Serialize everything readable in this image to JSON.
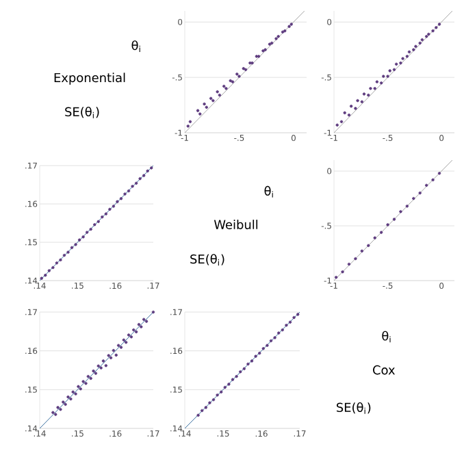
{
  "chart_data": [
    {
      "type": "other",
      "annotations": [
        "θ$_{i}$",
        "Exponential",
        "SE(θ$_{i}$)"
      ]
    },
    {
      "type": "scatter",
      "xlim": [
        -1,
        0.12
      ],
      "ylim": [
        -1,
        0.1
      ],
      "xticks": [
        -1,
        {
          "value": -0.5,
          "label": "-.5"
        },
        0
      ],
      "yticks": [
        -1,
        {
          "value": -0.5,
          "label": "-.5"
        },
        0
      ],
      "grid": "y",
      "series": [
        {
          "color": "#5e3c7f",
          "marker": "circle",
          "x": [
            -0.97,
            -0.95,
            -0.88,
            -0.86,
            -0.82,
            -0.8,
            -0.76,
            -0.74,
            -0.7,
            -0.68,
            -0.64,
            -0.62,
            -0.58,
            -0.56,
            -0.52,
            -0.5,
            -0.46,
            -0.44,
            -0.4,
            -0.38,
            -0.34,
            -0.32,
            -0.28,
            -0.26,
            -0.22,
            -0.2,
            -0.16,
            -0.14,
            -0.1,
            -0.08,
            -0.04,
            -0.02
          ],
          "values": [
            -0.94,
            -0.9,
            -0.8,
            -0.83,
            -0.74,
            -0.77,
            -0.69,
            -0.71,
            -0.63,
            -0.66,
            -0.58,
            -0.6,
            -0.53,
            -0.54,
            -0.47,
            -0.49,
            -0.42,
            -0.43,
            -0.37,
            -0.37,
            -0.31,
            -0.31,
            -0.26,
            -0.25,
            -0.2,
            -0.19,
            -0.15,
            -0.13,
            -0.09,
            -0.08,
            -0.04,
            -0.02
          ]
        },
        {
          "type": "line",
          "marker": "none",
          "color": "#a8a8a8",
          "x": [
            -1,
            0.1
          ],
          "values": [
            -1,
            0.1
          ]
        }
      ]
    },
    {
      "type": "scatter",
      "xlim": [
        -1,
        0.12
      ],
      "ylim": [
        -1,
        0.1
      ],
      "xticks": [
        -1,
        {
          "value": -0.5,
          "label": "-.5"
        },
        0
      ],
      "yticks": [
        -1,
        {
          "value": -0.5,
          "label": "-.5"
        },
        0
      ],
      "grid": "y",
      "series": [
        {
          "color": "#5e3c7f",
          "marker": "circle",
          "x": [
            -0.97,
            -0.93,
            -0.9,
            -0.86,
            -0.84,
            -0.8,
            -0.78,
            -0.74,
            -0.72,
            -0.68,
            -0.66,
            -0.62,
            -0.6,
            -0.56,
            -0.54,
            -0.5,
            -0.48,
            -0.44,
            -0.42,
            -0.38,
            -0.36,
            -0.32,
            -0.3,
            -0.26,
            -0.24,
            -0.2,
            -0.18,
            -0.14,
            -0.12,
            -0.08,
            -0.05,
            -0.02
          ],
          "values": [
            -0.93,
            -0.9,
            -0.82,
            -0.84,
            -0.76,
            -0.78,
            -0.71,
            -0.72,
            -0.65,
            -0.66,
            -0.6,
            -0.6,
            -0.54,
            -0.55,
            -0.49,
            -0.49,
            -0.44,
            -0.43,
            -0.38,
            -0.37,
            -0.33,
            -0.31,
            -0.27,
            -0.25,
            -0.22,
            -0.19,
            -0.16,
            -0.13,
            -0.11,
            -0.08,
            -0.05,
            -0.02
          ]
        },
        {
          "type": "line",
          "marker": "none",
          "color": "#a8a8a8",
          "x": [
            -1,
            0.1
          ],
          "values": [
            -1,
            0.1
          ]
        }
      ]
    },
    {
      "type": "scatter",
      "xlim": [
        0.14,
        0.17
      ],
      "ylim": [
        0.14,
        0.17
      ],
      "xticks": [
        {
          "value": 0.14,
          "label": ".14"
        },
        {
          "value": 0.15,
          "label": ".15"
        },
        {
          "value": 0.16,
          "label": ".16"
        },
        {
          "value": 0.17,
          "label": ".17"
        }
      ],
      "yticks": [
        {
          "value": 0.14,
          "label": ".14"
        },
        {
          "value": 0.15,
          "label": ".15"
        },
        {
          "value": 0.16,
          "label": ".16"
        },
        {
          "value": 0.17,
          "label": ".17"
        }
      ],
      "grid": "y",
      "series": [
        {
          "color": "#5e3c7f",
          "marker": "circle",
          "x": [
            0.1405,
            0.1415,
            0.1425,
            0.1435,
            0.1445,
            0.1455,
            0.1465,
            0.1475,
            0.1485,
            0.1495,
            0.1505,
            0.1515,
            0.1525,
            0.1535,
            0.1545,
            0.1555,
            0.1565,
            0.1575,
            0.1585,
            0.1595,
            0.1605,
            0.1615,
            0.1625,
            0.1635,
            0.1645,
            0.1655,
            0.1665,
            0.1675,
            0.1685,
            0.1695
          ],
          "values": [
            0.1406,
            0.1414,
            0.1426,
            0.1434,
            0.1446,
            0.1454,
            0.1466,
            0.1474,
            0.1486,
            0.1494,
            0.1506,
            0.1514,
            0.1526,
            0.1534,
            0.1546,
            0.1554,
            0.1566,
            0.1574,
            0.1586,
            0.1594,
            0.1606,
            0.1614,
            0.1626,
            0.1634,
            0.1646,
            0.1654,
            0.1666,
            0.1674,
            0.1686,
            0.1694
          ]
        },
        {
          "type": "line",
          "marker": "none",
          "color": "#3a6fa0",
          "x": [
            0.14,
            0.17
          ],
          "values": [
            0.14,
            0.17
          ]
        }
      ]
    },
    {
      "type": "other",
      "annotations": [
        "θ$_{i}$",
        "Weibull",
        "SE(θ$_{i}$)"
      ]
    },
    {
      "type": "scatter",
      "xlim": [
        -1,
        0.12
      ],
      "ylim": [
        -1,
        0.1
      ],
      "xticks": [
        -1,
        {
          "value": -0.5,
          "label": "-.5"
        },
        0
      ],
      "yticks": [
        -1,
        {
          "value": -0.5,
          "label": "-.5"
        },
        0
      ],
      "grid": "y",
      "series": [
        {
          "color": "#5e3c7f",
          "marker": "circle",
          "x": [
            -0.98,
            -0.92,
            -0.86,
            -0.8,
            -0.74,
            -0.68,
            -0.62,
            -0.56,
            -0.5,
            -0.44,
            -0.38,
            -0.32,
            -0.26,
            -0.2,
            -0.14,
            -0.08,
            -0.02
          ],
          "values": [
            -0.97,
            -0.92,
            -0.85,
            -0.8,
            -0.73,
            -0.68,
            -0.61,
            -0.56,
            -0.49,
            -0.44,
            -0.37,
            -0.32,
            -0.25,
            -0.2,
            -0.13,
            -0.08,
            -0.02
          ]
        },
        {
          "type": "line",
          "marker": "none",
          "color": "#a8a8a8",
          "x": [
            -1,
            0.1
          ],
          "values": [
            -1,
            0.1
          ]
        }
      ]
    },
    {
      "type": "scatter",
      "xlim": [
        0.14,
        0.17
      ],
      "ylim": [
        0.14,
        0.17
      ],
      "xticks": [
        {
          "value": 0.14,
          "label": ".14"
        },
        {
          "value": 0.15,
          "label": ".15"
        },
        {
          "value": 0.16,
          "label": ".16"
        },
        {
          "value": 0.17,
          "label": ".17"
        }
      ],
      "yticks": [
        {
          "value": 0.14,
          "label": ".14"
        },
        {
          "value": 0.15,
          "label": ".15"
        },
        {
          "value": 0.16,
          "label": ".16"
        },
        {
          "value": 0.17,
          "label": ".17"
        }
      ],
      "grid": "y",
      "series": [
        {
          "color": "#5e3c7f",
          "marker": "circle",
          "x": [
            0.1435,
            0.1442,
            0.1448,
            0.1455,
            0.1462,
            0.1468,
            0.1475,
            0.1482,
            0.1488,
            0.1495,
            0.1502,
            0.1508,
            0.1515,
            0.1522,
            0.1528,
            0.1535,
            0.1542,
            0.1548,
            0.1555,
            0.1562,
            0.1568,
            0.1575,
            0.1582,
            0.1588,
            0.1595,
            0.1602,
            0.1608,
            0.1615,
            0.1622,
            0.1628,
            0.1635,
            0.1642,
            0.1648,
            0.1655,
            0.1662,
            0.1668,
            0.1675,
            0.1682,
            0.17
          ],
          "values": [
            0.1441,
            0.1436,
            0.1454,
            0.1449,
            0.1468,
            0.1462,
            0.1481,
            0.1476,
            0.1494,
            0.1489,
            0.1508,
            0.1502,
            0.1521,
            0.1516,
            0.1534,
            0.1529,
            0.1548,
            0.1542,
            0.1561,
            0.1556,
            0.1574,
            0.1562,
            0.1588,
            0.1582,
            0.1601,
            0.1589,
            0.1614,
            0.1609,
            0.1628,
            0.1622,
            0.1641,
            0.1636,
            0.1654,
            0.1649,
            0.1668,
            0.1662,
            0.1681,
            0.1676,
            0.17
          ]
        },
        {
          "type": "line",
          "marker": "none",
          "color": "#3a6fa0",
          "x": [
            0.14,
            0.17
          ],
          "values": [
            0.14,
            0.17
          ]
        }
      ]
    },
    {
      "type": "scatter",
      "xlim": [
        0.14,
        0.17
      ],
      "ylim": [
        0.14,
        0.17
      ],
      "xticks": [
        {
          "value": 0.14,
          "label": ".14"
        },
        {
          "value": 0.15,
          "label": ".15"
        },
        {
          "value": 0.16,
          "label": ".16"
        },
        {
          "value": 0.17,
          "label": ".17"
        }
      ],
      "yticks": [
        {
          "value": 0.14,
          "label": ".14"
        },
        {
          "value": 0.15,
          "label": ".15"
        },
        {
          "value": 0.16,
          "label": ".16"
        },
        {
          "value": 0.17,
          "label": ".17"
        }
      ],
      "grid": "y",
      "series": [
        {
          "color": "#5e3c7f",
          "marker": "circle",
          "x": [
            0.1435,
            0.1445,
            0.1455,
            0.1465,
            0.1475,
            0.1485,
            0.1495,
            0.1505,
            0.1515,
            0.1525,
            0.1535,
            0.1545,
            0.1555,
            0.1565,
            0.1575,
            0.1585,
            0.1595,
            0.1605,
            0.1615,
            0.1625,
            0.1635,
            0.1645,
            0.1655,
            0.1665,
            0.1675,
            0.1685,
            0.1695
          ],
          "values": [
            0.1434,
            0.1446,
            0.1454,
            0.1466,
            0.1474,
            0.1486,
            0.1494,
            0.1506,
            0.1514,
            0.1526,
            0.1534,
            0.1546,
            0.1554,
            0.1566,
            0.1574,
            0.1586,
            0.1594,
            0.1606,
            0.1614,
            0.1626,
            0.1634,
            0.1646,
            0.1654,
            0.1666,
            0.1674,
            0.1686,
            0.1694
          ]
        },
        {
          "type": "line",
          "marker": "none",
          "color": "#3a6fa0",
          "x": [
            0.14,
            0.17
          ],
          "values": [
            0.14,
            0.17
          ]
        }
      ]
    },
    {
      "type": "other",
      "annotations": [
        "θ$_{i}$",
        "Cox",
        "SE(θ$_{i}$)"
      ]
    }
  ]
}
